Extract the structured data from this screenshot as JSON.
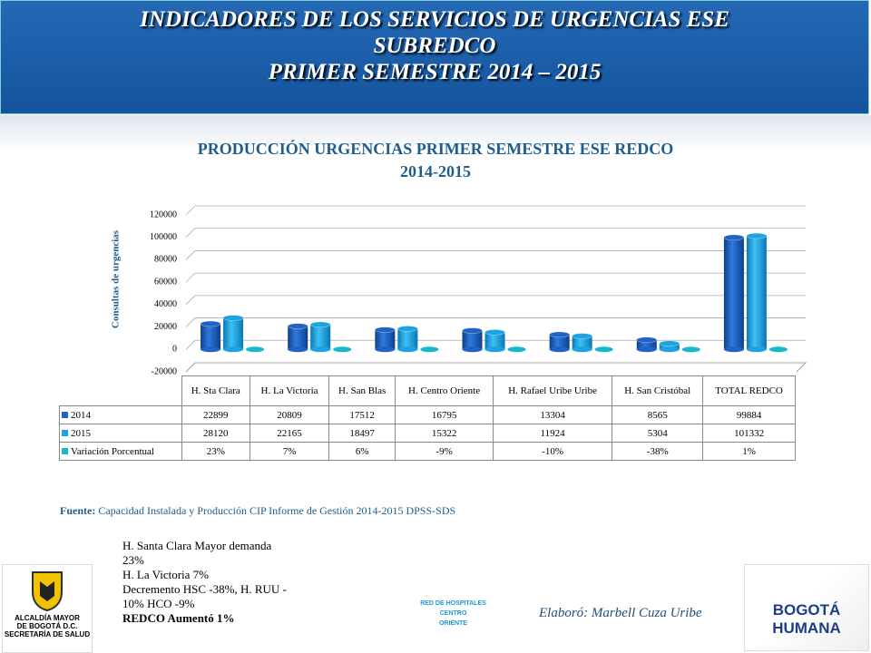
{
  "header": {
    "lines": [
      "INDICADORES DE LOS SERVICIOS DE URGENCIAS ESE",
      "SUBREDCO",
      "PRIMER SEMESTRE 2014 – 2015"
    ]
  },
  "chart_data": {
    "type": "bar",
    "title": [
      "PRODUCCIÓN URGENCIAS PRIMER SEMESTRE ESE REDCO",
      "2014-2015"
    ],
    "y_label": "Consultas de urgencias",
    "categories": [
      "H. Sta Clara",
      "H. La Victoria",
      "H. San Blas",
      "H. Centro Oriente",
      "H. Rafael Uribe Uribe",
      "H. San Cristóbal",
      "TOTAL REDCO"
    ],
    "series": [
      {
        "name": "2014",
        "color": "#1f63c6",
        "values": [
          22899,
          20809,
          17512,
          16795,
          13304,
          8565,
          99884
        ]
      },
      {
        "name": "2015",
        "color": "#1fa3e0",
        "values": [
          28120,
          22165,
          18497,
          15322,
          11924,
          5304,
          101332
        ]
      },
      {
        "name": "Variación Porcentual",
        "color": "#19b9c9",
        "values": [
          23,
          7,
          6,
          -9,
          -10,
          -38,
          1
        ],
        "value_labels": [
          "23%",
          "7%",
          "6%",
          "-9%",
          "-10%",
          "-38%",
          "1%"
        ]
      }
    ],
    "ylim": [
      -20000,
      120000
    ],
    "yticks": [
      -20000,
      0,
      20000,
      40000,
      60000,
      80000,
      100000,
      120000
    ],
    "grid": true
  },
  "source": {
    "label": "Fuente:",
    "text": "Capacidad Instalada y Producción CIP Informe de Gestión 2014-2015 DPSS-SDS"
  },
  "notes": [
    "H. Santa Clara Mayor demanda",
    "23%",
    "H. La Victoria 7%",
    "Decremento HSC  -38%,  H. RUU -",
    "10% HCO -9%",
    "REDCO Aumentó 1%"
  ],
  "author": "Elaboró: Marbell Cuza Uribe",
  "logos": {
    "alcaldia": [
      "ALCALDÍA MAYOR",
      "DE BOGOTÁ D.C.",
      "SECRETARÍA DE SALUD"
    ],
    "red": [
      "RED DE HOSPITALES",
      "CENTRO",
      "ORIENTE"
    ],
    "bogota": [
      "BOGOTÁ",
      "HUMANA"
    ]
  }
}
